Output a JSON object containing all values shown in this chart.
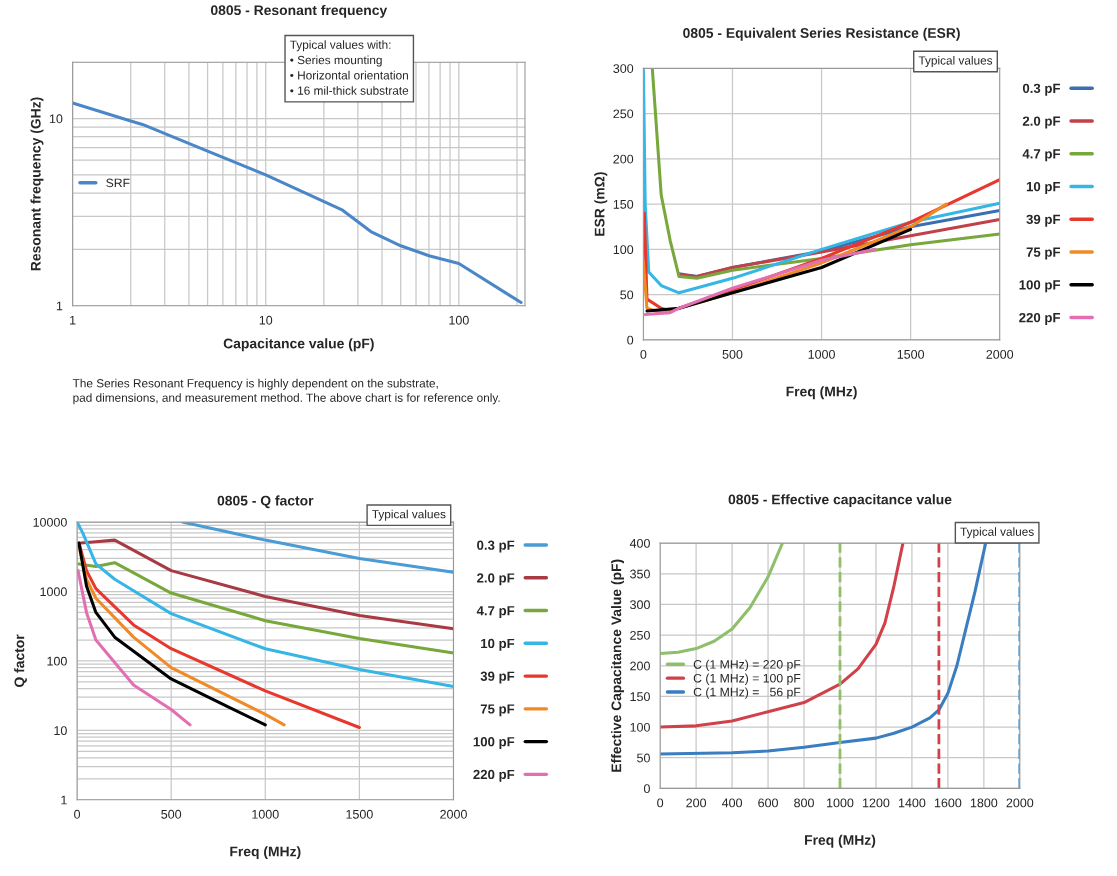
{
  "chart_data": [
    {
      "type": "line",
      "title": "0805 - Resonant frequency",
      "xlabel": "Capacitance value (pF)",
      "ylabel": "Resonant frequency (GHz)",
      "log": "xy",
      "xlim": [
        1,
        220
      ],
      "ylim": [
        1,
        20
      ],
      "xticks": [
        1,
        10,
        100
      ],
      "yticks": [
        1,
        10
      ],
      "grid": true,
      "legend": "center left",
      "annotations": [
        "Typical values with:\n• Series mounting\n• Horizontal orientation\n• 16 mil-thick substrate",
        "The Series Resonant Frequency is highly dependent on the substrate,\npad dimensions, and measurement method. The above chart is for reference only."
      ],
      "series": [
        {
          "name": "SRF",
          "color": "#4a86c8",
          "x": [
            1,
            2,
            2.3,
            5,
            10,
            25,
            35,
            50,
            70,
            100,
            210
          ],
          "values": [
            12.1,
            9.7,
            9.3,
            6.7,
            5.0,
            3.24,
            2.49,
            2.09,
            1.85,
            1.68,
            1.04
          ]
        }
      ]
    },
    {
      "type": "line",
      "title": "0805 - Equivalent Series Resistance (ESR)",
      "xlabel": "Freq (MHz)",
      "ylabel": "ESR (mΩ)",
      "xlim": [
        0,
        2000
      ],
      "ylim": [
        0,
        300
      ],
      "xticks": [
        0,
        500,
        1000,
        1500,
        2000
      ],
      "yticks": [
        0,
        50,
        100,
        150,
        200,
        250,
        300
      ],
      "grid": true,
      "legend": "right",
      "annotations": [
        "Typical values"
      ],
      "series": [
        {
          "name": "0.3 pF",
          "color": "#3b6fb0",
          "x": [
            200,
            300,
            500,
            1000,
            1500,
            2000
          ],
          "values": [
            73,
            70,
            80,
            98,
            125,
            143
          ]
        },
        {
          "name": "2.0 pF",
          "color": "#c2404a",
          "x": [
            200,
            300,
            500,
            1000,
            1500,
            2000
          ],
          "values": [
            72,
            70,
            80,
            97,
            115,
            133
          ]
        },
        {
          "name": "4.7 pF",
          "color": "#78a83c",
          "x": [
            50,
            100,
            150,
            200,
            300,
            500,
            1000,
            1500,
            2000
          ],
          "values": [
            300,
            160,
            110,
            70,
            68,
            77,
            90,
            105,
            117
          ]
        },
        {
          "name": "10 pF",
          "color": "#35b6e6",
          "x": [
            0,
            10,
            30,
            100,
            200,
            500,
            1000,
            1500,
            2000
          ],
          "values": [
            300,
            150,
            75,
            60,
            52,
            68,
            100,
            130,
            151
          ]
        },
        {
          "name": "39 pF",
          "color": "#e8372c",
          "x": [
            5,
            20,
            100,
            150,
            200,
            500,
            1000,
            1500,
            2000
          ],
          "values": [
            140,
            45,
            35,
            32,
            35,
            55,
            90,
            130,
            177
          ]
        },
        {
          "name": "75 pF",
          "color": "#f08a24",
          "x": [
            0,
            20,
            100,
            200,
            500,
            1000,
            1500,
            1700
          ],
          "values": [
            85,
            35,
            30,
            35,
            52,
            85,
            125,
            150
          ]
        },
        {
          "name": "100 pF",
          "color": "#000000",
          "x": [
            20,
            200,
            500,
            1000,
            1500
          ],
          "values": [
            32,
            35,
            52,
            80,
            122
          ]
        },
        {
          "name": "220 pF",
          "color": "#e36fb3",
          "x": [
            10,
            150,
            200,
            500,
            1000,
            1300
          ],
          "values": [
            28,
            30,
            35,
            57,
            88,
            100
          ]
        }
      ]
    },
    {
      "type": "line",
      "title": "0805 - Q factor",
      "xlabel": "Freq (MHz)",
      "ylabel": "Q factor",
      "log": "y",
      "xlim": [
        0,
        2000
      ],
      "ylim": [
        1,
        10000
      ],
      "xticks": [
        0,
        500,
        1000,
        1500,
        2000
      ],
      "yticks": [
        1,
        10,
        100,
        1000,
        10000
      ],
      "grid": true,
      "legend": "right",
      "annotations": [
        "Typical values"
      ],
      "series": [
        {
          "name": "0.3 pF",
          "color": "#4a9bd6",
          "x": [
            560,
            1000,
            1500,
            2000
          ],
          "values": [
            10000,
            5500,
            3000,
            1900
          ]
        },
        {
          "name": "2.0 pF",
          "color": "#a83a44",
          "x": [
            20,
            100,
            200,
            500,
            1000,
            1500,
            2000
          ],
          "values": [
            5000,
            5200,
            5500,
            2000,
            850,
            450,
            290
          ]
        },
        {
          "name": "4.7 pF",
          "color": "#78a83c",
          "x": [
            10,
            100,
            200,
            500,
            1000,
            1500,
            2000
          ],
          "values": [
            2500,
            2300,
            2600,
            950,
            380,
            210,
            130
          ]
        },
        {
          "name": "10 pF",
          "color": "#35b6e6",
          "x": [
            0,
            30,
            100,
            200,
            500,
            1000,
            1500,
            2000
          ],
          "values": [
            10000,
            7000,
            2500,
            1500,
            480,
            150,
            75,
            43
          ]
        },
        {
          "name": "39 pF",
          "color": "#e8372c",
          "x": [
            10,
            50,
            100,
            300,
            500,
            1000,
            1500
          ],
          "values": [
            5000,
            2000,
            1100,
            330,
            150,
            37,
            11
          ]
        },
        {
          "name": "75 pF",
          "color": "#f08a24",
          "x": [
            10,
            50,
            100,
            300,
            500,
            1000,
            1100
          ],
          "values": [
            4500,
            1500,
            800,
            220,
            80,
            17,
            12
          ]
        },
        {
          "name": "100 pF",
          "color": "#000000",
          "x": [
            10,
            50,
            100,
            200,
            500,
            800,
            1000
          ],
          "values": [
            5000,
            1200,
            500,
            220,
            55,
            22,
            12
          ]
        },
        {
          "name": "220 pF",
          "color": "#e36fb3",
          "x": [
            5,
            50,
            100,
            300,
            500,
            600
          ],
          "values": [
            2000,
            500,
            200,
            45,
            20,
            12
          ]
        }
      ]
    },
    {
      "type": "line",
      "title": "0805 - Effective capacitance value",
      "xlabel": "Freq (MHz)",
      "ylabel": "Effective Capacitance Value (pF)",
      "xlim": [
        0,
        2000
      ],
      "ylim": [
        0,
        400
      ],
      "xticks": [
        0,
        200,
        400,
        600,
        800,
        1000,
        1200,
        1400,
        1600,
        1800,
        2000
      ],
      "yticks": [
        0,
        50,
        100,
        150,
        200,
        250,
        300,
        350,
        400
      ],
      "grid": true,
      "legend": "center left",
      "annotations": [
        "Typical values"
      ],
      "ref_lines": [
        {
          "axis": "x",
          "value": 1000,
          "color": "#8fbf6a",
          "line_style": "dashed"
        },
        {
          "axis": "x",
          "value": 1550,
          "color": "#d0414a",
          "line_style": "dashed"
        },
        {
          "axis": "x",
          "value": 2000,
          "color": "#3a8cc8",
          "line_style": "dashed"
        }
      ],
      "series": [
        {
          "name": "C (1 MHz) = 220 pF",
          "color": "#8fbf6a",
          "x": [
            0,
            100,
            200,
            300,
            400,
            500,
            600,
            680
          ],
          "values": [
            220,
            222,
            228,
            240,
            260,
            295,
            345,
            400
          ]
        },
        {
          "name": "C (1 MHz) = 100 pF",
          "color": "#d0414a",
          "x": [
            0,
            200,
            400,
            600,
            800,
            900,
            1000,
            1100,
            1200,
            1250,
            1300,
            1350
          ],
          "values": [
            100,
            102,
            110,
            125,
            140,
            155,
            170,
            195,
            235,
            270,
            330,
            400
          ]
        },
        {
          "name": "C (1 MHz) =   56 pF",
          "color": "#3a7dc0",
          "x": [
            0,
            400,
            600,
            800,
            1000,
            1200,
            1300,
            1400,
            1500,
            1550,
            1600,
            1650,
            1700,
            1750,
            1810
          ],
          "values": [
            56,
            58,
            61,
            67,
            75,
            82,
            90,
            100,
            115,
            128,
            155,
            200,
            260,
            320,
            400
          ]
        }
      ]
    }
  ]
}
